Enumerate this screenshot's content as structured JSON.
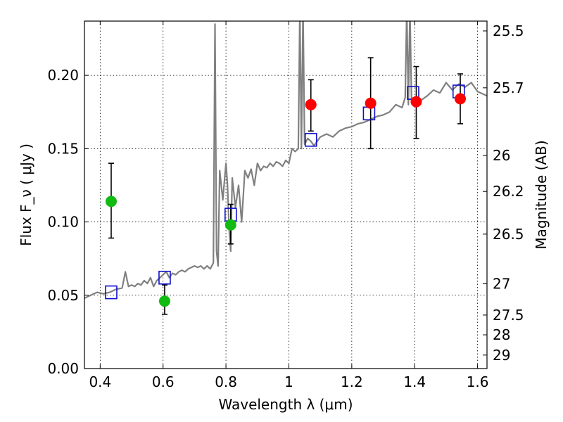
{
  "chart_data": {
    "type": "scatter",
    "xlabel": "Wavelength  λ (μm)",
    "ylabel": "Flux  F_ν  ( μJy )",
    "ylabel_right": "Magnitude (AB)",
    "xlim": [
      0.35,
      1.63
    ],
    "ylim": [
      0.0,
      0.237
    ],
    "x_ticks": [
      0.4,
      0.6,
      0.8,
      1.0,
      1.2,
      1.4,
      1.6
    ],
    "x_tick_labels": [
      "0.4",
      "0.6",
      "0.8",
      "1",
      "1.2",
      "1.4",
      "1.6"
    ],
    "y_ticks": [
      0.0,
      0.05,
      0.1,
      0.15,
      0.2
    ],
    "y_tick_labels": [
      "0.00",
      "0.05",
      "0.10",
      "0.15",
      "0.20"
    ],
    "right_ticks": [
      {
        "label": "25.5",
        "flux": 0.2303
      },
      {
        "label": "25.7",
        "flux": 0.1915
      },
      {
        "label": "26",
        "flux": 0.1453
      },
      {
        "label": "26.2",
        "flux": 0.1208
      },
      {
        "label": "26.5",
        "flux": 0.0917
      },
      {
        "label": "27",
        "flux": 0.0578
      },
      {
        "label": "27.5",
        "flux": 0.0365
      },
      {
        "label": "28",
        "flux": 0.023
      },
      {
        "label": "29",
        "flux": 0.0092
      }
    ],
    "grid": true,
    "colors": {
      "spectrum": "#808080",
      "model_box": "#1010cc",
      "green_point": "#11bb11",
      "red_point": "#ff0000",
      "errorbar": "#000000"
    },
    "spectrum": {
      "x": [
        0.35,
        0.37,
        0.39,
        0.41,
        0.43,
        0.45,
        0.47,
        0.48,
        0.49,
        0.5,
        0.51,
        0.52,
        0.53,
        0.54,
        0.55,
        0.56,
        0.57,
        0.58,
        0.59,
        0.6,
        0.61,
        0.62,
        0.63,
        0.64,
        0.65,
        0.66,
        0.67,
        0.68,
        0.69,
        0.7,
        0.71,
        0.72,
        0.73,
        0.74,
        0.75,
        0.76,
        0.765,
        0.77,
        0.775,
        0.78,
        0.79,
        0.8,
        0.805,
        0.81,
        0.815,
        0.82,
        0.83,
        0.84,
        0.85,
        0.86,
        0.87,
        0.88,
        0.89,
        0.9,
        0.91,
        0.92,
        0.93,
        0.94,
        0.95,
        0.96,
        0.97,
        0.98,
        0.99,
        1.0,
        1.01,
        1.02,
        1.03,
        1.035,
        1.04,
        1.045,
        1.05,
        1.06,
        1.07,
        1.08,
        1.1,
        1.12,
        1.14,
        1.16,
        1.18,
        1.2,
        1.22,
        1.24,
        1.26,
        1.28,
        1.3,
        1.32,
        1.34,
        1.36,
        1.37,
        1.375,
        1.38,
        1.385,
        1.39,
        1.4,
        1.42,
        1.44,
        1.46,
        1.48,
        1.5,
        1.52,
        1.54,
        1.56,
        1.58,
        1.6,
        1.62,
        1.63
      ],
      "y": [
        0.048,
        0.05,
        0.052,
        0.051,
        0.052,
        0.054,
        0.055,
        0.066,
        0.056,
        0.057,
        0.056,
        0.058,
        0.057,
        0.06,
        0.058,
        0.062,
        0.056,
        0.06,
        0.062,
        0.064,
        0.066,
        0.062,
        0.065,
        0.064,
        0.066,
        0.067,
        0.066,
        0.068,
        0.069,
        0.07,
        0.069,
        0.07,
        0.068,
        0.07,
        0.068,
        0.072,
        0.235,
        0.08,
        0.07,
        0.135,
        0.115,
        0.14,
        0.125,
        0.095,
        0.08,
        0.13,
        0.11,
        0.125,
        0.1,
        0.135,
        0.13,
        0.136,
        0.125,
        0.14,
        0.135,
        0.138,
        0.137,
        0.14,
        0.138,
        0.141,
        0.14,
        0.138,
        0.142,
        0.14,
        0.15,
        0.148,
        0.15,
        0.245,
        0.15,
        0.245,
        0.153,
        0.157,
        0.155,
        0.152,
        0.158,
        0.16,
        0.158,
        0.162,
        0.164,
        0.165,
        0.167,
        0.168,
        0.17,
        0.172,
        0.173,
        0.175,
        0.18,
        0.178,
        0.185,
        0.245,
        0.18,
        0.245,
        0.182,
        0.185,
        0.183,
        0.186,
        0.19,
        0.188,
        0.195,
        0.19,
        0.194,
        0.192,
        0.195,
        0.189,
        0.187,
        0.186
      ]
    },
    "model_boxes": [
      {
        "x": 0.435,
        "y": 0.052
      },
      {
        "x": 0.605,
        "y": 0.062
      },
      {
        "x": 0.815,
        "y": 0.105
      },
      {
        "x": 1.07,
        "y": 0.156
      },
      {
        "x": 1.255,
        "y": 0.174
      },
      {
        "x": 1.395,
        "y": 0.188
      },
      {
        "x": 1.54,
        "y": 0.189
      }
    ],
    "green_points": [
      {
        "x": 0.435,
        "y": 0.114,
        "err_low": 0.089,
        "err_high": 0.14
      },
      {
        "x": 0.605,
        "y": 0.046,
        "err_low": 0.037,
        "err_high": 0.057
      },
      {
        "x": 0.815,
        "y": 0.098,
        "err_low": 0.085,
        "err_high": 0.112
      }
    ],
    "red_points": [
      {
        "x": 1.07,
        "y": 0.18,
        "err_low": 0.162,
        "err_high": 0.197
      },
      {
        "x": 1.26,
        "y": 0.181,
        "err_low": 0.15,
        "err_high": 0.212
      },
      {
        "x": 1.405,
        "y": 0.182,
        "err_low": 0.157,
        "err_high": 0.206
      },
      {
        "x": 1.545,
        "y": 0.184,
        "err_low": 0.167,
        "err_high": 0.201
      }
    ]
  }
}
